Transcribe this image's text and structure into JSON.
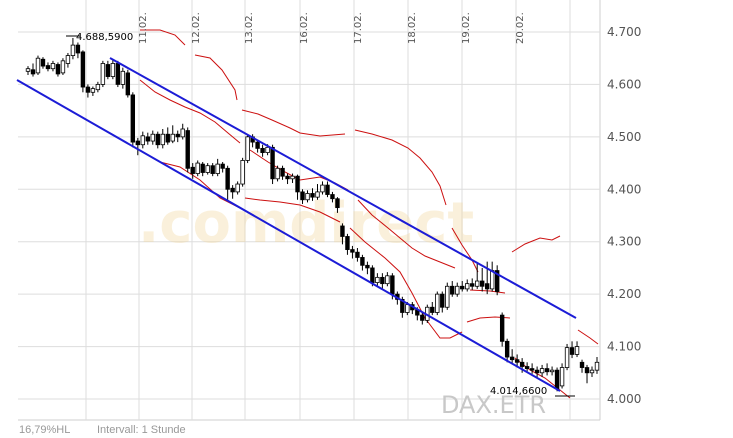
{
  "chart_data": {
    "type": "candlestick",
    "x_ticks": [
      "11.02.",
      "12.02.",
      "13.02.",
      "16.02.",
      "17.02.",
      "18.02.",
      "19.02.",
      "20.02."
    ],
    "y_ticks": [
      "4.700",
      "4.600",
      "4.500",
      "4.400",
      "4.300",
      "4.200",
      "4.100",
      "4.000"
    ],
    "y_tick_values": [
      4700,
      4600,
      4500,
      4400,
      4300,
      4200,
      4100,
      4000
    ],
    "ylim": [
      3950,
      4740
    ],
    "grid": true,
    "annotations": {
      "high_label": "4.688,5900",
      "high_value": 4688.59,
      "low_label": "4.014,6600",
      "low_value": 4014.66
    },
    "footer_left": "16,79%HL",
    "footer_interval": "Intervall: 1 Stunde",
    "source_label": "DAX.ETR",
    "watermark": ".comdirect",
    "colors": {
      "channel": "#1c1cd6",
      "bands": "#cc1010",
      "candle": "#000000",
      "grid": "#dddddd"
    },
    "candles": [
      [
        4625,
        4630,
        4618,
        4635
      ],
      [
        4628,
        4620,
        4615,
        4640
      ],
      [
        4622,
        4650,
        4618,
        4655
      ],
      [
        4648,
        4635,
        4630,
        4652
      ],
      [
        4636,
        4630,
        4625,
        4642
      ],
      [
        4630,
        4640,
        4625,
        4645
      ],
      [
        4638,
        4620,
        4615,
        4642
      ],
      [
        4622,
        4645,
        4618,
        4650
      ],
      [
        4640,
        4655,
        4632,
        4660
      ],
      [
        4655,
        4675,
        4648,
        4688.59
      ],
      [
        4675,
        4660,
        4650,
        4680
      ],
      [
        4662,
        4595,
        4585,
        4665
      ],
      [
        4595,
        4585,
        4575,
        4600
      ],
      [
        4585,
        4592,
        4578,
        4596
      ],
      [
        4590,
        4600,
        4585,
        4605
      ],
      [
        4600,
        4640,
        4595,
        4645
      ],
      [
        4638,
        4615,
        4610,
        4645
      ],
      [
        4615,
        4640,
        4610,
        4648
      ],
      [
        4640,
        4600,
        4595,
        4645
      ],
      [
        4600,
        4625,
        4592,
        4632
      ],
      [
        4622,
        4580,
        4575,
        4628
      ],
      [
        4580,
        4490,
        4480,
        4585
      ],
      [
        4492,
        4485,
        4465,
        4498
      ],
      [
        4485,
        4502,
        4478,
        4510
      ],
      [
        4500,
        4492,
        4485,
        4508
      ],
      [
        4492,
        4505,
        4485,
        4512
      ],
      [
        4505,
        4485,
        4478,
        4510
      ],
      [
        4485,
        4505,
        4478,
        4515
      ],
      [
        4505,
        4490,
        4485,
        4518
      ],
      [
        4492,
        4505,
        4488,
        4522
      ],
      [
        4505,
        4500,
        4490,
        4512
      ],
      [
        4500,
        4515,
        4495,
        4525
      ],
      [
        4512,
        4440,
        4432,
        4518
      ],
      [
        4442,
        4430,
        4420,
        4450
      ],
      [
        4430,
        4450,
        4425,
        4455
      ],
      [
        4448,
        4432,
        4425,
        4452
      ],
      [
        4432,
        4445,
        4428,
        4450
      ],
      [
        4445,
        4430,
        4425,
        4450
      ],
      [
        4430,
        4448,
        4425,
        4458
      ],
      [
        4448,
        4440,
        4432,
        4452
      ],
      [
        4440,
        4400,
        4380,
        4445
      ],
      [
        4402,
        4395,
        4382,
        4408
      ],
      [
        4395,
        4410,
        4390,
        4415
      ],
      [
        4410,
        4455,
        4405,
        4460
      ],
      [
        4455,
        4500,
        4450,
        4505
      ],
      [
        4500,
        4490,
        4480,
        4505
      ],
      [
        4490,
        4478,
        4470,
        4495
      ],
      [
        4478,
        4470,
        4462,
        4485
      ],
      [
        4470,
        4480,
        4465,
        4486
      ],
      [
        4480,
        4420,
        4410,
        4485
      ],
      [
        4420,
        4440,
        4415,
        4445
      ],
      [
        4440,
        4425,
        4418,
        4445
      ],
      [
        4425,
        4420,
        4410,
        4430
      ],
      [
        4420,
        4425,
        4412,
        4430
      ],
      [
        4425,
        4395,
        4380,
        4428
      ],
      [
        4395,
        4380,
        4372,
        4400
      ],
      [
        4380,
        4392,
        4375,
        4398
      ],
      [
        4392,
        4385,
        4378,
        4402
      ],
      [
        4385,
        4395,
        4380,
        4410
      ],
      [
        4395,
        4408,
        4390,
        4415
      ],
      [
        4408,
        4390,
        4385,
        4415
      ],
      [
        4390,
        4382,
        4375,
        4395
      ],
      [
        4382,
        4365,
        4355,
        4385
      ],
      [
        4330,
        4310,
        4295,
        4335
      ],
      [
        4310,
        4285,
        4275,
        4315
      ],
      [
        4285,
        4280,
        4268,
        4292
      ],
      [
        4280,
        4270,
        4262,
        4288
      ],
      [
        4270,
        4255,
        4245,
        4275
      ],
      [
        4255,
        4250,
        4238,
        4262
      ],
      [
        4250,
        4222,
        4215,
        4255
      ],
      [
        4222,
        4232,
        4215,
        4240
      ],
      [
        4232,
        4220,
        4210,
        4240
      ],
      [
        4220,
        4235,
        4215,
        4242
      ],
      [
        4235,
        4200,
        4190,
        4240
      ],
      [
        4200,
        4190,
        4180,
        4205
      ],
      [
        4190,
        4165,
        4155,
        4195
      ],
      [
        4165,
        4180,
        4160,
        4185
      ],
      [
        4180,
        4170,
        4162,
        4185
      ],
      [
        4170,
        4160,
        4150,
        4175
      ],
      [
        4160,
        4150,
        4142,
        4165
      ],
      [
        4150,
        4175,
        4145,
        4180
      ],
      [
        4175,
        4165,
        4160,
        4185
      ],
      [
        4165,
        4200,
        4160,
        4205
      ],
      [
        4200,
        4175,
        4165,
        4205
      ],
      [
        4175,
        4215,
        4170,
        4222
      ],
      [
        4215,
        4200,
        4195,
        4225
      ],
      [
        4200,
        4215,
        4195,
        4222
      ],
      [
        4215,
        4210,
        4205,
        4225
      ],
      [
        4210,
        4220,
        4205,
        4228
      ],
      [
        4220,
        4215,
        4208,
        4230
      ],
      [
        4215,
        4225,
        4210,
        4260
      ],
      [
        4225,
        4215,
        4205,
        4250
      ],
      [
        4220,
        4210,
        4200,
        4262
      ],
      [
        4210,
        4245,
        4205,
        4262
      ],
      [
        4245,
        4205,
        4198,
        4255
      ],
      [
        4160,
        4110,
        4100,
        4165
      ],
      [
        4110,
        4080,
        4070,
        4115
      ],
      [
        4080,
        4075,
        4068,
        4095
      ],
      [
        4075,
        4070,
        4060,
        4085
      ],
      [
        4070,
        4062,
        4050,
        4078
      ],
      [
        4062,
        4058,
        4050,
        4070
      ],
      [
        4058,
        4055,
        4048,
        4068
      ],
      [
        4055,
        4050,
        4040,
        4062
      ],
      [
        4050,
        4058,
        4042,
        4065
      ],
      [
        4058,
        4052,
        4045,
        4068
      ],
      [
        4052,
        4055,
        4045,
        4062
      ],
      [
        4055,
        4020,
        4014.66,
        4060
      ],
      [
        4025,
        4060,
        4020,
        4068
      ],
      [
        4060,
        4098,
        4055,
        4105
      ],
      [
        4098,
        4085,
        4078,
        4110
      ],
      [
        4085,
        4100,
        4080,
        4110
      ],
      [
        4070,
        4060,
        4050,
        4075
      ],
      [
        4060,
        4050,
        4030,
        4065
      ],
      [
        4050,
        4055,
        4042,
        4062
      ],
      [
        4055,
        4070,
        4048,
        4080
      ]
    ]
  }
}
